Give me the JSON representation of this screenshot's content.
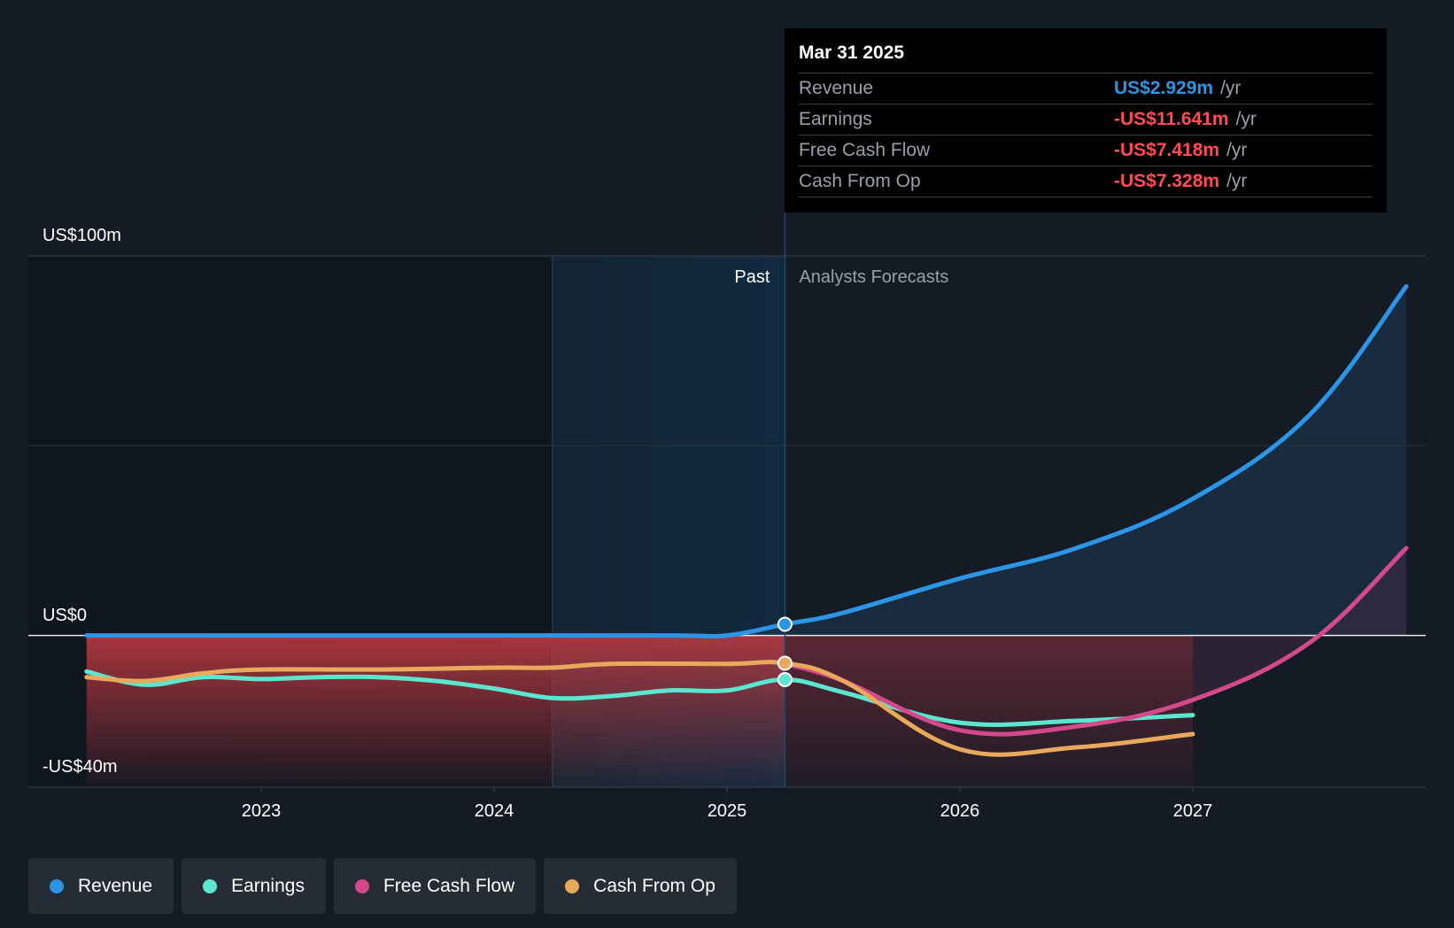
{
  "chart_data": {
    "type": "line",
    "x_ticks": [
      "2023",
      "2024",
      "2025",
      "2026",
      "2027"
    ],
    "y_labels": {
      "top": "US$100m",
      "zero": "US$0",
      "bottom": "-US$40m"
    },
    "ylim": [
      -40,
      100
    ],
    "grid": true,
    "regions": {
      "past_label": "Past",
      "forecast_label": "Analysts Forecasts",
      "past_highlight_start": "2024-04",
      "divider": "2025-03-31"
    },
    "series": [
      {
        "name": "Revenue",
        "color": "#2d95e6",
        "area": true,
        "points": [
          [
            "2022-04",
            0
          ],
          [
            "2023-01",
            0
          ],
          [
            "2024-01",
            0
          ],
          [
            "2024-10",
            0
          ],
          [
            "2025-01",
            0
          ],
          [
            "2025-03-31",
            2.929
          ],
          [
            "2025-07",
            6
          ],
          [
            "2026-01",
            15
          ],
          [
            "2026-07",
            23
          ],
          [
            "2027-01",
            36
          ],
          [
            "2027-07",
            58
          ],
          [
            "2027-12",
            92
          ]
        ]
      },
      {
        "name": "Earnings",
        "color": "#5ce6cf",
        "points": [
          [
            "2022-04",
            -9.5
          ],
          [
            "2022-07",
            -13
          ],
          [
            "2022-10",
            -11
          ],
          [
            "2023-01",
            -11.5
          ],
          [
            "2023-04",
            -11
          ],
          [
            "2023-07",
            -11
          ],
          [
            "2023-10",
            -12
          ],
          [
            "2024-01",
            -14
          ],
          [
            "2024-04",
            -16.5
          ],
          [
            "2024-07",
            -16
          ],
          [
            "2024-10",
            -14.5
          ],
          [
            "2025-01",
            -14.5
          ],
          [
            "2025-03-31",
            -11.641
          ],
          [
            "2025-07",
            -15
          ],
          [
            "2026-01",
            -23
          ],
          [
            "2026-07",
            -22.5
          ],
          [
            "2027-01",
            -21
          ]
        ]
      },
      {
        "name": "Free Cash Flow",
        "color": "#d4498c",
        "points": [
          [
            "2025-03-31",
            -7.418
          ],
          [
            "2025-07",
            -12
          ],
          [
            "2026-01",
            -25
          ],
          [
            "2026-07",
            -24
          ],
          [
            "2027-01",
            -17
          ],
          [
            "2027-07",
            -2
          ],
          [
            "2027-12",
            23
          ]
        ]
      },
      {
        "name": "Cash From Op",
        "color": "#e8a95c",
        "points": [
          [
            "2022-04",
            -11
          ],
          [
            "2022-07",
            -12
          ],
          [
            "2022-10",
            -10
          ],
          [
            "2023-01",
            -9
          ],
          [
            "2023-07",
            -9
          ],
          [
            "2024-01",
            -8.5
          ],
          [
            "2024-04",
            -8.5
          ],
          [
            "2024-07",
            -7.5
          ],
          [
            "2025-01",
            -7.5
          ],
          [
            "2025-03-31",
            -7.328
          ],
          [
            "2025-07",
            -12
          ],
          [
            "2026-01",
            -30
          ],
          [
            "2026-07",
            -29.5
          ],
          [
            "2027-01",
            -26
          ]
        ]
      }
    ],
    "filled_negative_area": {
      "color": "#c23b42",
      "start": "2022-04",
      "end": "2027-01"
    }
  },
  "tooltip": {
    "date": "Mar 31 2025",
    "rows": [
      {
        "label": "Revenue",
        "value": "US$2.929m",
        "unit": "/yr",
        "color": "#2d95e6"
      },
      {
        "label": "Earnings",
        "value": "-US$11.641m",
        "unit": "/yr",
        "color": "#ff4b55"
      },
      {
        "label": "Free Cash Flow",
        "value": "-US$7.418m",
        "unit": "/yr",
        "color": "#ff4b55"
      },
      {
        "label": "Cash From Op",
        "value": "-US$7.328m",
        "unit": "/yr",
        "color": "#ff4b55"
      }
    ]
  },
  "legend": [
    {
      "label": "Revenue",
      "color": "#2d95e6"
    },
    {
      "label": "Earnings",
      "color": "#5ce6cf"
    },
    {
      "label": "Free Cash Flow",
      "color": "#d4498c"
    },
    {
      "label": "Cash From Op",
      "color": "#e8a95c"
    }
  ]
}
